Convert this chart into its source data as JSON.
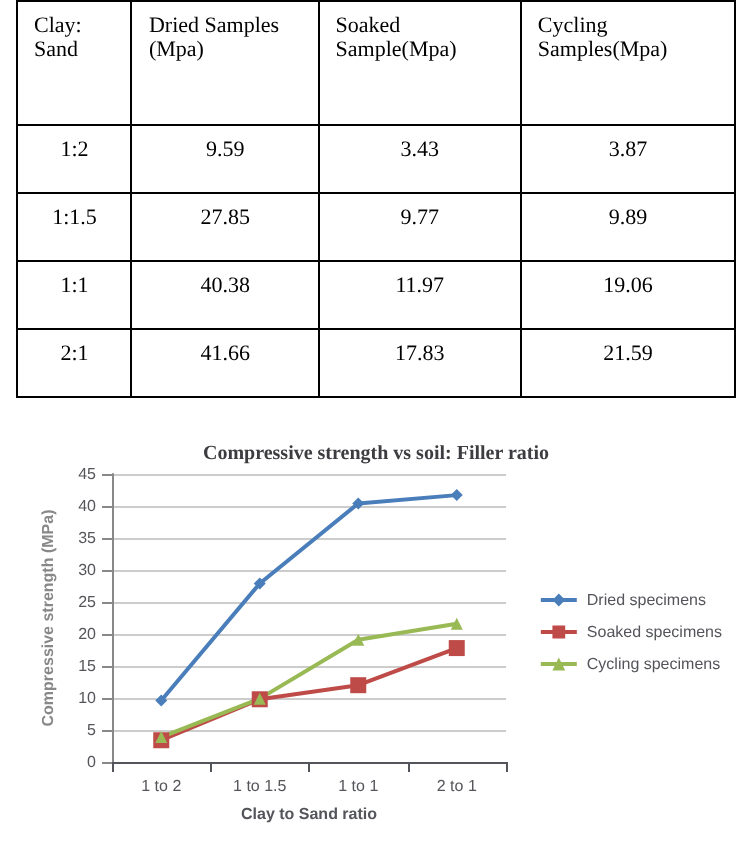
{
  "chart_data": [
    {
      "type": "other",
      "data_labels": true,
      "annotations": [
        "Clay: Sand"
      ],
      "categories": [
        "1:2",
        "1:1.5",
        "1:1",
        "2:1"
      ],
      "series": [
        {
          "name": "Dried Samples (Mpa)",
          "values": [
            9.59,
            27.85,
            40.38,
            41.66
          ]
        },
        {
          "name": "Soaked Sample(Mpa)",
          "values": [
            3.43,
            9.77,
            11.97,
            17.83
          ]
        },
        {
          "name": "Cycling Samples(Mpa)",
          "values": [
            3.87,
            9.89,
            19.06,
            21.59
          ]
        }
      ]
    },
    {
      "type": "line",
      "title": "Compressive strength vs soil: Filler ratio",
      "xlabel": "Clay to Sand ratio",
      "ylabel": "Compressive strength (MPa)",
      "categories": [
        "1 to 2",
        "1 to 1.5",
        "1 to 1",
        "2 to 1"
      ],
      "series": [
        {
          "name": "Dried specimens",
          "color": "#4a7ebb",
          "marker": "diamond",
          "values": [
            9.6,
            27.9,
            40.4,
            41.7
          ]
        },
        {
          "name": "Soaked specimens",
          "color": "#be4b48",
          "marker": "square",
          "values": [
            3.4,
            9.8,
            12.0,
            17.8
          ]
        },
        {
          "name": "Cycling specimens",
          "color": "#98b954",
          "marker": "triangle",
          "values": [
            3.9,
            9.9,
            19.1,
            21.6
          ]
        }
      ],
      "ylim": [
        0,
        45
      ],
      "yticks": [
        0,
        5,
        10,
        15,
        20,
        25,
        30,
        35,
        40,
        45
      ],
      "grid": "y",
      "legend": "right"
    }
  ]
}
